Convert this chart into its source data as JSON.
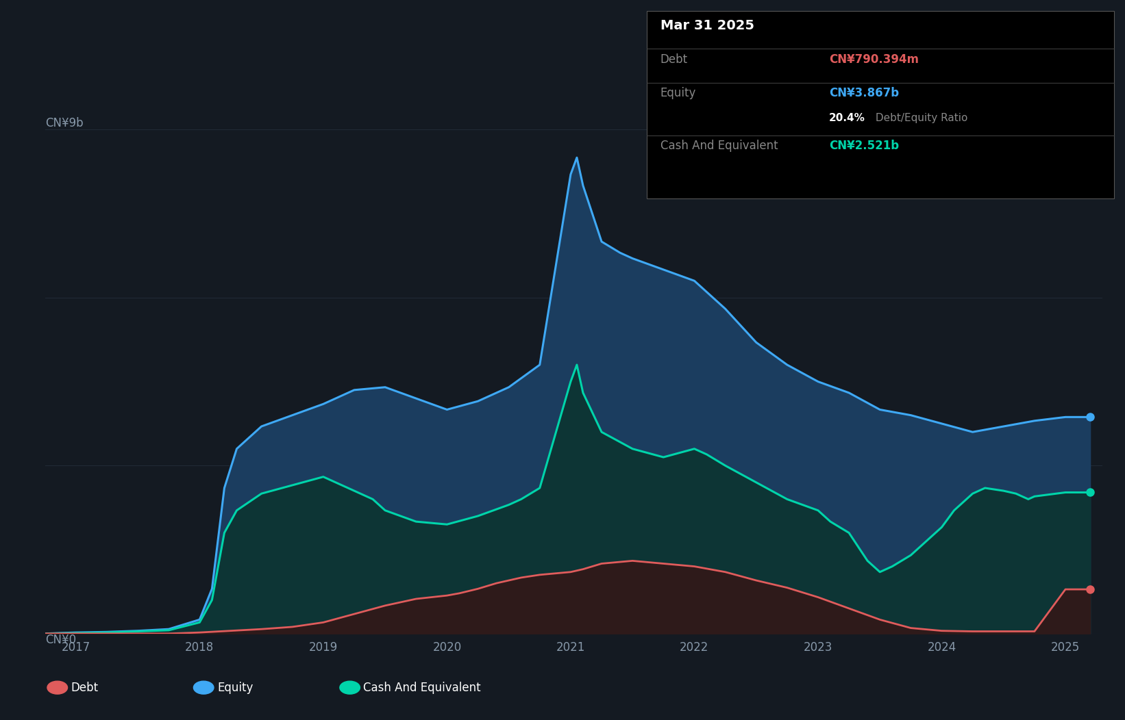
{
  "bg_color": "#141a22",
  "plot_bg_color": "#141a22",
  "ylabel_top": "CN¥9b",
  "ylabel_bottom": "CN¥0",
  "x_ticks": [
    2017,
    2018,
    2019,
    2020,
    2021,
    2022,
    2023,
    2024,
    2025
  ],
  "equity_color": "#3fa9f5",
  "equity_fill": "#1b3d5f",
  "cash_color": "#00d4aa",
  "cash_fill": "#0d3535",
  "debt_color": "#e05c5c",
  "debt_fill": "#2e1a1a",
  "grid_color": "#252f3a",
  "tooltip_bg": "#000000",
  "tooltip_border": "#444444",
  "tooltip_title": "Mar 31 2025",
  "tooltip_debt_label": "Debt",
  "tooltip_debt_value": "CN¥790.394m",
  "tooltip_equity_label": "Equity",
  "tooltip_equity_value": "CN¥3.867b",
  "tooltip_ratio_bold": "20.4%",
  "tooltip_ratio_rest": " Debt/Equity Ratio",
  "tooltip_cash_label": "Cash And Equivalent",
  "tooltip_cash_value": "CN¥2.521b",
  "legend_items": [
    "Debt",
    "Equity",
    "Cash And Equivalent"
  ],
  "legend_colors": [
    "#e05c5c",
    "#3fa9f5",
    "#00d4aa"
  ],
  "equity_data": [
    [
      2016.75,
      0.0
    ],
    [
      2017.0,
      0.02
    ],
    [
      2017.25,
      0.03
    ],
    [
      2017.5,
      0.05
    ],
    [
      2017.75,
      0.08
    ],
    [
      2018.0,
      0.25
    ],
    [
      2018.1,
      0.8
    ],
    [
      2018.2,
      2.6
    ],
    [
      2018.3,
      3.3
    ],
    [
      2018.5,
      3.7
    ],
    [
      2018.75,
      3.9
    ],
    [
      2019.0,
      4.1
    ],
    [
      2019.25,
      4.35
    ],
    [
      2019.5,
      4.4
    ],
    [
      2019.75,
      4.2
    ],
    [
      2020.0,
      4.0
    ],
    [
      2020.25,
      4.15
    ],
    [
      2020.5,
      4.4
    ],
    [
      2020.75,
      4.8
    ],
    [
      2021.0,
      8.2
    ],
    [
      2021.05,
      8.5
    ],
    [
      2021.1,
      8.0
    ],
    [
      2021.25,
      7.0
    ],
    [
      2021.4,
      6.8
    ],
    [
      2021.5,
      6.7
    ],
    [
      2021.75,
      6.5
    ],
    [
      2022.0,
      6.3
    ],
    [
      2022.25,
      5.8
    ],
    [
      2022.5,
      5.2
    ],
    [
      2022.75,
      4.8
    ],
    [
      2023.0,
      4.5
    ],
    [
      2023.25,
      4.3
    ],
    [
      2023.5,
      4.0
    ],
    [
      2023.75,
      3.9
    ],
    [
      2024.0,
      3.75
    ],
    [
      2024.25,
      3.6
    ],
    [
      2024.5,
      3.7
    ],
    [
      2024.75,
      3.8
    ],
    [
      2025.0,
      3.867
    ],
    [
      2025.2,
      3.867
    ]
  ],
  "cash_data": [
    [
      2016.75,
      0.0
    ],
    [
      2017.0,
      0.01
    ],
    [
      2017.25,
      0.02
    ],
    [
      2017.5,
      0.04
    ],
    [
      2017.75,
      0.06
    ],
    [
      2018.0,
      0.2
    ],
    [
      2018.1,
      0.6
    ],
    [
      2018.2,
      1.8
    ],
    [
      2018.3,
      2.2
    ],
    [
      2018.5,
      2.5
    ],
    [
      2018.75,
      2.65
    ],
    [
      2019.0,
      2.8
    ],
    [
      2019.1,
      2.7
    ],
    [
      2019.25,
      2.55
    ],
    [
      2019.4,
      2.4
    ],
    [
      2019.5,
      2.2
    ],
    [
      2019.75,
      2.0
    ],
    [
      2020.0,
      1.95
    ],
    [
      2020.25,
      2.1
    ],
    [
      2020.5,
      2.3
    ],
    [
      2020.6,
      2.4
    ],
    [
      2020.75,
      2.6
    ],
    [
      2021.0,
      4.5
    ],
    [
      2021.05,
      4.8
    ],
    [
      2021.1,
      4.3
    ],
    [
      2021.25,
      3.6
    ],
    [
      2021.5,
      3.3
    ],
    [
      2021.75,
      3.15
    ],
    [
      2022.0,
      3.3
    ],
    [
      2022.1,
      3.2
    ],
    [
      2022.25,
      3.0
    ],
    [
      2022.5,
      2.7
    ],
    [
      2022.75,
      2.4
    ],
    [
      2023.0,
      2.2
    ],
    [
      2023.1,
      2.0
    ],
    [
      2023.25,
      1.8
    ],
    [
      2023.4,
      1.3
    ],
    [
      2023.5,
      1.1
    ],
    [
      2023.6,
      1.2
    ],
    [
      2023.75,
      1.4
    ],
    [
      2024.0,
      1.9
    ],
    [
      2024.1,
      2.2
    ],
    [
      2024.25,
      2.5
    ],
    [
      2024.35,
      2.6
    ],
    [
      2024.5,
      2.55
    ],
    [
      2024.6,
      2.5
    ],
    [
      2024.7,
      2.4
    ],
    [
      2024.75,
      2.45
    ],
    [
      2025.0,
      2.521
    ],
    [
      2025.2,
      2.521
    ]
  ],
  "debt_data": [
    [
      2016.75,
      0.0
    ],
    [
      2017.0,
      0.0
    ],
    [
      2017.25,
      0.0
    ],
    [
      2017.5,
      0.0
    ],
    [
      2017.75,
      0.0
    ],
    [
      2018.0,
      0.02
    ],
    [
      2018.25,
      0.05
    ],
    [
      2018.5,
      0.08
    ],
    [
      2018.75,
      0.12
    ],
    [
      2019.0,
      0.2
    ],
    [
      2019.25,
      0.35
    ],
    [
      2019.5,
      0.5
    ],
    [
      2019.75,
      0.62
    ],
    [
      2020.0,
      0.68
    ],
    [
      2020.1,
      0.72
    ],
    [
      2020.25,
      0.8
    ],
    [
      2020.4,
      0.9
    ],
    [
      2020.5,
      0.95
    ],
    [
      2020.6,
      1.0
    ],
    [
      2020.75,
      1.05
    ],
    [
      2021.0,
      1.1
    ],
    [
      2021.1,
      1.15
    ],
    [
      2021.25,
      1.25
    ],
    [
      2021.5,
      1.3
    ],
    [
      2021.6,
      1.28
    ],
    [
      2021.75,
      1.25
    ],
    [
      2022.0,
      1.2
    ],
    [
      2022.25,
      1.1
    ],
    [
      2022.5,
      0.95
    ],
    [
      2022.75,
      0.82
    ],
    [
      2023.0,
      0.65
    ],
    [
      2023.25,
      0.45
    ],
    [
      2023.5,
      0.25
    ],
    [
      2023.75,
      0.1
    ],
    [
      2024.0,
      0.05
    ],
    [
      2024.25,
      0.04
    ],
    [
      2024.5,
      0.04
    ],
    [
      2024.75,
      0.04
    ],
    [
      2025.0,
      0.7904
    ],
    [
      2025.2,
      0.7904
    ]
  ]
}
